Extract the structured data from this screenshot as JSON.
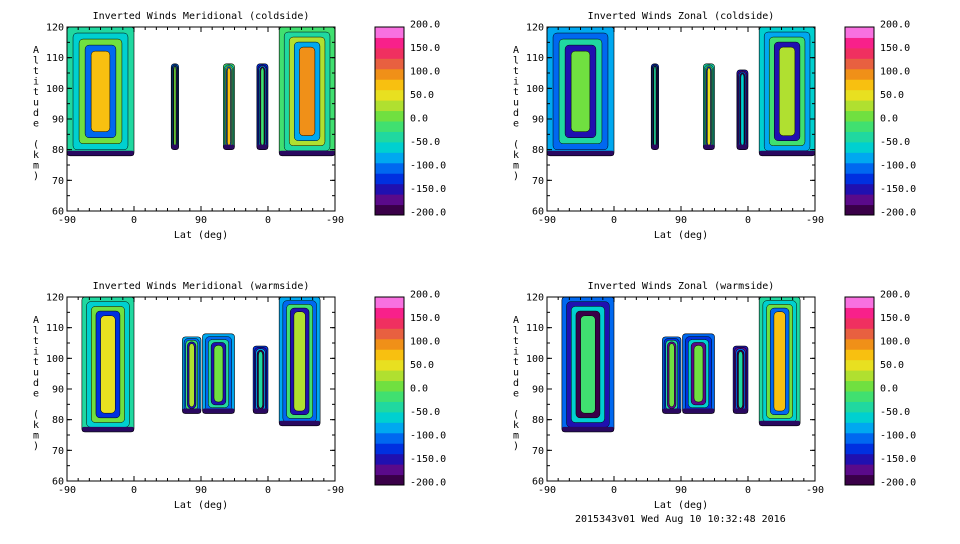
{
  "colors": {
    "scale": [
      "#3a0048",
      "#5a0a8a",
      "#2010b0",
      "#0030e0",
      "#0068f0",
      "#00a8f0",
      "#00d0d0",
      "#20d8a0",
      "#40e070",
      "#70e040",
      "#b0e030",
      "#e8e020",
      "#f8c010",
      "#f09018",
      "#e86040",
      "#f03060",
      "#f8208a",
      "#f870e0"
    ]
  },
  "colorbar": {
    "labels": [
      "200.0",
      "150.0",
      "100.0",
      "50.0",
      "0.0",
      "-50.0",
      "-100.0",
      "-150.0",
      "-200.0"
    ]
  },
  "footer": "2015343v01 Wed Aug 10 10:32:48 2016",
  "chart_data": [
    {
      "type": "contour",
      "title": "Inverted Winds Meridional (coldside)",
      "xlabel": "Lat (deg)",
      "ylabel": "Altitude (km)",
      "xticks": [
        "-90",
        "0",
        "90",
        "0",
        "-90"
      ],
      "yticks": [
        "60",
        "70",
        "80",
        "90",
        "100",
        "110",
        "120"
      ],
      "ylim": [
        60,
        120
      ],
      "clim": [
        -200,
        200
      ],
      "regions": [
        {
          "lat_from": -90,
          "lat_to": 0,
          "alt_from": 78,
          "alt_to": 120,
          "value": -30
        },
        {
          "lat_from": 50,
          "lat_to": 60,
          "alt_from": 80,
          "alt_to": 108,
          "value": -100
        },
        {
          "lat_from": 120,
          "lat_to": 135,
          "alt_from": 80,
          "alt_to": 108,
          "value": -20
        },
        {
          "lat_from": 165,
          "lat_to": 180,
          "alt_from": 80,
          "alt_to": 108,
          "value": -120
        },
        {
          "lat_from": 195,
          "lat_to": 270,
          "alt_from": 78,
          "alt_to": 120,
          "value": -10
        }
      ]
    },
    {
      "type": "contour",
      "title": "Inverted Winds Zonal (coldside)",
      "xlabel": "Lat (deg)",
      "ylabel": "Altitude (km)",
      "xticks": [
        "-90",
        "0",
        "90",
        "0",
        "-90"
      ],
      "yticks": [
        "60",
        "70",
        "80",
        "90",
        "100",
        "110",
        "120"
      ],
      "ylim": [
        60,
        120
      ],
      "clim": [
        -200,
        200
      ],
      "regions": [
        {
          "lat_from": -90,
          "lat_to": 0,
          "alt_from": 78,
          "alt_to": 120,
          "value": -80
        },
        {
          "lat_from": 50,
          "lat_to": 60,
          "alt_from": 80,
          "alt_to": 108,
          "value": -130
        },
        {
          "lat_from": 120,
          "lat_to": 135,
          "alt_from": 80,
          "alt_to": 108,
          "value": -40
        },
        {
          "lat_from": 165,
          "lat_to": 180,
          "alt_from": 80,
          "alt_to": 106,
          "value": -150
        },
        {
          "lat_from": 195,
          "lat_to": 270,
          "alt_from": 78,
          "alt_to": 120,
          "value": -60
        }
      ]
    },
    {
      "type": "contour",
      "title": "Inverted Winds Meridional (warmside)",
      "xlabel": "Lat (deg)",
      "ylabel": "Altitude (km)",
      "xticks": [
        "-90",
        "0",
        "90",
        "0",
        "-90"
      ],
      "yticks": [
        "60",
        "70",
        "80",
        "90",
        "100",
        "110",
        "120"
      ],
      "ylim": [
        60,
        120
      ],
      "clim": [
        -200,
        200
      ],
      "regions": [
        {
          "lat_from": -70,
          "lat_to": 0,
          "alt_from": 76,
          "alt_to": 120,
          "value": -40
        },
        {
          "lat_from": 65,
          "lat_to": 90,
          "alt_from": 82,
          "alt_to": 107,
          "value": -70
        },
        {
          "lat_from": 92,
          "lat_to": 135,
          "alt_from": 82,
          "alt_to": 108,
          "value": -80
        },
        {
          "lat_from": 160,
          "lat_to": 180,
          "alt_from": 82,
          "alt_to": 104,
          "value": -130
        },
        {
          "lat_from": 195,
          "lat_to": 250,
          "alt_from": 78,
          "alt_to": 120,
          "value": -70
        }
      ]
    },
    {
      "type": "contour",
      "title": "Inverted Winds Zonal (warmside)",
      "xlabel": "Lat (deg)",
      "ylabel": "Altitude (km)",
      "xticks": [
        "-90",
        "0",
        "90",
        "0",
        "-90"
      ],
      "yticks": [
        "60",
        "70",
        "80",
        "90",
        "100",
        "110",
        "120"
      ],
      "ylim": [
        60,
        120
      ],
      "clim": [
        -200,
        200
      ],
      "regions": [
        {
          "lat_from": -70,
          "lat_to": 0,
          "alt_from": 76,
          "alt_to": 120,
          "value": -110
        },
        {
          "lat_from": 65,
          "lat_to": 90,
          "alt_from": 82,
          "alt_to": 107,
          "value": -90
        },
        {
          "lat_from": 92,
          "lat_to": 135,
          "alt_from": 82,
          "alt_to": 108,
          "value": -100
        },
        {
          "lat_from": 160,
          "lat_to": 180,
          "alt_from": 82,
          "alt_to": 104,
          "value": -140
        },
        {
          "lat_from": 195,
          "lat_to": 250,
          "alt_from": 78,
          "alt_to": 120,
          "value": -30
        }
      ]
    }
  ]
}
